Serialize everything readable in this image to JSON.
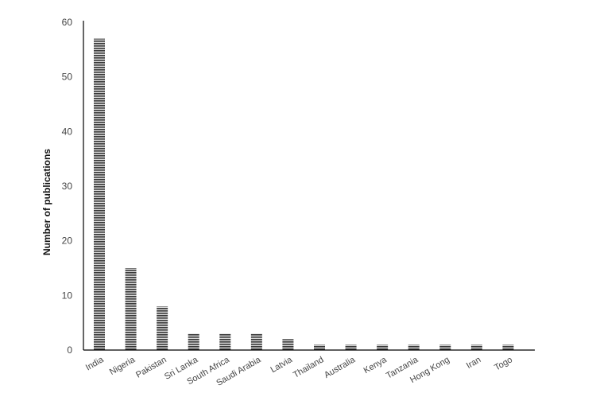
{
  "chart_data": {
    "type": "bar",
    "title": "",
    "xlabel": "",
    "ylabel": "Number of publications",
    "categories": [
      "India",
      "Nigeria",
      "Pakistan",
      "Sri Lanka",
      "South Africa",
      "Saudi Arabia",
      "Latvia",
      "Thailand",
      "Australia",
      "Kenya",
      "Tanzania",
      "Hong Kong",
      "Iran",
      "Togo"
    ],
    "values": [
      57,
      15,
      8,
      3,
      3,
      3,
      2,
      1,
      1,
      1,
      1,
      1,
      1,
      1
    ],
    "ylim": [
      0,
      60
    ],
    "yticks": [
      0,
      10,
      20,
      30,
      40,
      50,
      60
    ],
    "grid": false,
    "legend": "none",
    "bar_pattern": "horizontal-stripes",
    "colors": {
      "bar_dark": "#3a3a3a",
      "bar_light": "#d8d8d8",
      "axis": "#000000"
    }
  }
}
